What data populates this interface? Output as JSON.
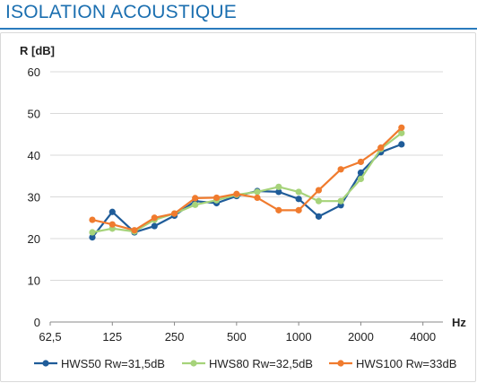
{
  "header": {
    "title": "ISOLATION ACOUSTIQUE"
  },
  "chart_data": {
    "type": "line",
    "ylabel": "R [dB]",
    "xlabel": "Hz",
    "ylim": [
      0,
      60
    ],
    "yticks": [
      0,
      10,
      20,
      30,
      40,
      50,
      60
    ],
    "xscale": "log2",
    "xlim": [
      62.5,
      5000
    ],
    "xticks": [
      {
        "value": 62.5,
        "label": "62,5"
      },
      {
        "value": 125,
        "label": "125"
      },
      {
        "value": 250,
        "label": "250"
      },
      {
        "value": 500,
        "label": "500"
      },
      {
        "value": 1000,
        "label": "1000"
      },
      {
        "value": 2000,
        "label": "2000"
      },
      {
        "value": 4000,
        "label": "4000"
      }
    ],
    "x": [
      100,
      125,
      160,
      200,
      250,
      315,
      400,
      500,
      630,
      800,
      1000,
      1250,
      1600,
      2000,
      2500,
      3150
    ],
    "grid": true,
    "legend": "bottom",
    "series": [
      {
        "name": "HWS50 Rw=31,5dB",
        "color": "#1f5c99",
        "values": [
          20.3,
          26.4,
          21.5,
          23.0,
          25.5,
          29.0,
          28.5,
          30.2,
          31.4,
          31.2,
          29.5,
          25.3,
          28.0,
          35.8,
          40.7,
          42.6
        ]
      },
      {
        "name": "HWS80 Rw=32,5dB",
        "color": "#a6d37a",
        "values": [
          21.5,
          22.4,
          21.7,
          24.5,
          26.0,
          28.1,
          29.2,
          30.5,
          31.2,
          32.4,
          31.2,
          29.0,
          29.0,
          34.3,
          41.5,
          45.3
        ]
      },
      {
        "name": "HWS100 Rw=33dB",
        "color": "#f07b2e",
        "values": [
          24.5,
          23.4,
          22.0,
          25.0,
          26.0,
          29.7,
          29.8,
          30.7,
          29.8,
          26.8,
          26.8,
          31.6,
          36.6,
          38.4,
          41.8,
          46.6
        ]
      }
    ]
  }
}
